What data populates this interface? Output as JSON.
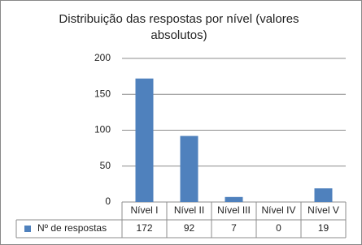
{
  "chart_data": {
    "type": "bar",
    "title": "Distribuição das respostas por nível (valores absolutos)",
    "categories": [
      "Nível I",
      "Nível II",
      "Nível III",
      "Nível IV",
      "Nível V"
    ],
    "series": [
      {
        "name": "Nº de respostas",
        "color": "#4f81bd",
        "values": [
          172,
          92,
          7,
          0,
          19
        ]
      }
    ],
    "ylim": [
      0,
      200
    ],
    "yticks": [
      0,
      50,
      100,
      150,
      200
    ],
    "grid": true,
    "data_table": true
  }
}
